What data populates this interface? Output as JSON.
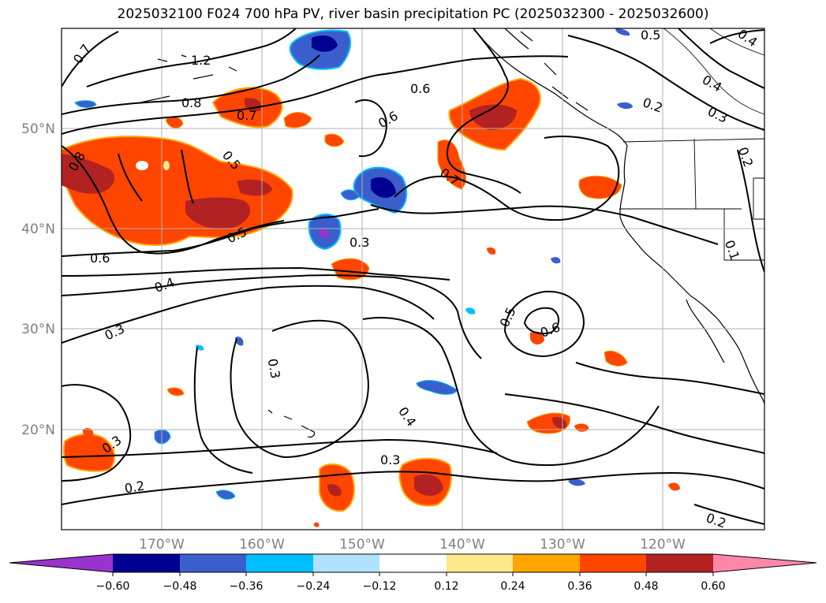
{
  "title": "2025032100 F024 700 hPa PV, river basin precipitation PC (2025032300 - 2025032600)",
  "lat_labels": [
    "50°N",
    "40°N",
    "30°N",
    "20°N"
  ],
  "lon_labels": [
    "170°W",
    "160°W",
    "150°W",
    "140°W",
    "130°W",
    "120°W"
  ],
  "contour_labels": [
    "0.7",
    "1.2",
    "0.8",
    "0.7",
    "0.6",
    "0.6",
    "0.7",
    "0.5",
    "0.4",
    "0.2",
    "0.3",
    "0.2",
    "0.4",
    "0.8",
    "0.5",
    "0.5",
    "0.6",
    "0.4",
    "0.3",
    "0.3",
    "0.3",
    "0.4",
    "0.3",
    "0.5",
    "0.6",
    "0.3",
    "0.2",
    "0.2",
    "0.1"
  ],
  "colorbar": {
    "ticks": [
      "−0.60",
      "−0.48",
      "−0.36",
      "−0.24",
      "−0.12",
      "0.12",
      "0.24",
      "0.36",
      "0.48",
      "0.60"
    ],
    "colors": [
      "#9933cc",
      "#000090",
      "#3a5fcd",
      "#00bfff",
      "#b0e2ff",
      "#ffffff",
      "#ffe88c",
      "#ffa500",
      "#ff4500",
      "#b22222",
      "#ff88aa"
    ]
  },
  "legend": {
    "shading": "river basin precipitation PC",
    "contours": "700 hPa PV"
  }
}
